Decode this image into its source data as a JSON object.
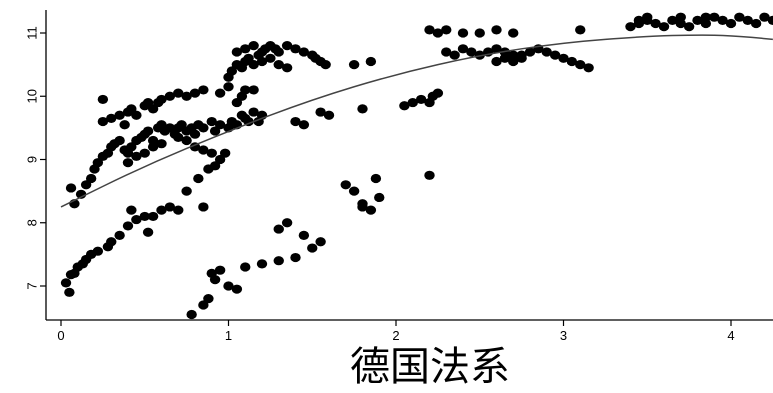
{
  "chart_data": {
    "type": "scatter",
    "xlabel": "德国法系",
    "ylabel": "",
    "title": "",
    "xlim": [
      -0.1,
      4.25
    ],
    "ylim": [
      6.5,
      11.4
    ],
    "xticks": [
      "0",
      "1",
      "2",
      "3",
      "4"
    ],
    "yticks": [
      "7",
      "8",
      "9",
      "10",
      "11"
    ],
    "grid": false,
    "points": [
      [
        0.05,
        6.9
      ],
      [
        0.03,
        7.05
      ],
      [
        0.08,
        7.2
      ],
      [
        0.1,
        7.3
      ],
      [
        0.13,
        7.35
      ],
      [
        0.06,
        7.18
      ],
      [
        0.15,
        7.42
      ],
      [
        0.18,
        7.5
      ],
      [
        0.22,
        7.55
      ],
      [
        0.28,
        7.62
      ],
      [
        0.3,
        7.7
      ],
      [
        0.35,
        7.8
      ],
      [
        0.4,
        7.95
      ],
      [
        0.45,
        8.05
      ],
      [
        0.5,
        8.1
      ],
      [
        0.42,
        8.2
      ],
      [
        0.52,
        7.85
      ],
      [
        0.55,
        8.1
      ],
      [
        0.6,
        8.2
      ],
      [
        0.65,
        8.25
      ],
      [
        0.7,
        8.2
      ],
      [
        0.85,
        8.25
      ],
      [
        0.75,
        8.5
      ],
      [
        0.82,
        8.7
      ],
      [
        0.88,
        8.85
      ],
      [
        0.92,
        8.9
      ],
      [
        0.95,
        9.0
      ],
      [
        0.98,
        9.1
      ],
      [
        0.06,
        8.55
      ],
      [
        0.08,
        8.3
      ],
      [
        0.12,
        8.45
      ],
      [
        0.15,
        8.6
      ],
      [
        0.18,
        8.7
      ],
      [
        0.2,
        8.85
      ],
      [
        0.22,
        8.95
      ],
      [
        0.25,
        9.05
      ],
      [
        0.28,
        9.1
      ],
      [
        0.3,
        9.2
      ],
      [
        0.32,
        9.25
      ],
      [
        0.35,
        9.3
      ],
      [
        0.38,
        9.15
      ],
      [
        0.4,
        9.1
      ],
      [
        0.42,
        9.2
      ],
      [
        0.45,
        9.3
      ],
      [
        0.48,
        9.35
      ],
      [
        0.5,
        9.4
      ],
      [
        0.52,
        9.45
      ],
      [
        0.55,
        9.3
      ],
      [
        0.58,
        9.5
      ],
      [
        0.6,
        9.55
      ],
      [
        0.62,
        9.45
      ],
      [
        0.65,
        9.5
      ],
      [
        0.68,
        9.4
      ],
      [
        0.7,
        9.5
      ],
      [
        0.72,
        9.55
      ],
      [
        0.75,
        9.45
      ],
      [
        0.78,
        9.5
      ],
      [
        0.8,
        9.4
      ],
      [
        0.82,
        9.55
      ],
      [
        0.85,
        9.5
      ],
      [
        0.9,
        9.6
      ],
      [
        0.92,
        9.45
      ],
      [
        0.95,
        9.55
      ],
      [
        0.25,
        9.6
      ],
      [
        0.3,
        9.65
      ],
      [
        0.35,
        9.7
      ],
      [
        0.38,
        9.55
      ],
      [
        0.4,
        9.75
      ],
      [
        0.42,
        9.8
      ],
      [
        0.45,
        9.7
      ],
      [
        0.5,
        9.85
      ],
      [
        0.52,
        9.9
      ],
      [
        0.55,
        9.8
      ],
      [
        0.58,
        9.9
      ],
      [
        0.6,
        9.95
      ],
      [
        0.65,
        10.0
      ],
      [
        0.7,
        10.05
      ],
      [
        0.75,
        10.0
      ],
      [
        0.8,
        10.05
      ],
      [
        0.85,
        10.1
      ],
      [
        0.25,
        9.95
      ],
      [
        0.7,
        9.35
      ],
      [
        0.75,
        9.3
      ],
      [
        0.8,
        9.2
      ],
      [
        0.85,
        9.15
      ],
      [
        0.9,
        9.1
      ],
      [
        0.6,
        9.25
      ],
      [
        0.55,
        9.2
      ],
      [
        0.5,
        9.1
      ],
      [
        0.45,
        9.05
      ],
      [
        0.4,
        8.95
      ],
      [
        1.0,
        9.5
      ],
      [
        1.02,
        9.6
      ],
      [
        1.05,
        9.55
      ],
      [
        1.08,
        9.7
      ],
      [
        1.1,
        9.65
      ],
      [
        1.12,
        9.6
      ],
      [
        1.15,
        9.75
      ],
      [
        1.18,
        9.6
      ],
      [
        1.2,
        9.7
      ],
      [
        1.05,
        9.9
      ],
      [
        1.08,
        10.0
      ],
      [
        1.1,
        10.1
      ],
      [
        1.0,
        10.15
      ],
      [
        0.95,
        10.05
      ],
      [
        1.15,
        10.1
      ],
      [
        1.0,
        10.3
      ],
      [
        1.02,
        10.4
      ],
      [
        1.05,
        10.5
      ],
      [
        1.08,
        10.45
      ],
      [
        1.1,
        10.55
      ],
      [
        1.12,
        10.6
      ],
      [
        1.15,
        10.5
      ],
      [
        1.18,
        10.65
      ],
      [
        1.2,
        10.7
      ],
      [
        1.22,
        10.75
      ],
      [
        1.25,
        10.8
      ],
      [
        1.28,
        10.75
      ],
      [
        1.3,
        10.7
      ],
      [
        1.35,
        10.8
      ],
      [
        1.4,
        10.75
      ],
      [
        1.45,
        10.7
      ],
      [
        1.5,
        10.65
      ],
      [
        1.52,
        10.6
      ],
      [
        1.55,
        10.55
      ],
      [
        1.58,
        10.5
      ],
      [
        1.3,
        10.5
      ],
      [
        1.35,
        10.45
      ],
      [
        1.25,
        10.6
      ],
      [
        1.2,
        10.55
      ],
      [
        1.05,
        10.7
      ],
      [
        1.1,
        10.75
      ],
      [
        1.15,
        10.8
      ],
      [
        1.4,
        9.6
      ],
      [
        1.45,
        9.55
      ],
      [
        1.55,
        9.75
      ],
      [
        1.6,
        9.7
      ],
      [
        1.8,
        9.8
      ],
      [
        1.0,
        7.0
      ],
      [
        1.05,
        6.95
      ],
      [
        0.9,
        7.2
      ],
      [
        0.92,
        7.1
      ],
      [
        0.88,
        6.8
      ],
      [
        0.85,
        6.7
      ],
      [
        0.78,
        6.55
      ],
      [
        0.95,
        7.25
      ],
      [
        1.1,
        7.3
      ],
      [
        1.2,
        7.35
      ],
      [
        1.3,
        7.4
      ],
      [
        1.4,
        7.45
      ],
      [
        1.5,
        7.6
      ],
      [
        1.55,
        7.7
      ],
      [
        1.3,
        7.9
      ],
      [
        1.35,
        8.0
      ],
      [
        1.45,
        7.8
      ],
      [
        1.7,
        8.6
      ],
      [
        1.75,
        8.5
      ],
      [
        1.8,
        8.3
      ],
      [
        1.85,
        8.2
      ],
      [
        1.9,
        8.4
      ],
      [
        1.88,
        8.7
      ],
      [
        1.8,
        8.25
      ],
      [
        1.75,
        10.5
      ],
      [
        1.85,
        10.55
      ],
      [
        2.05,
        9.85
      ],
      [
        2.1,
        9.9
      ],
      [
        2.15,
        9.95
      ],
      [
        2.2,
        9.9
      ],
      [
        2.22,
        10.0
      ],
      [
        2.25,
        10.05
      ],
      [
        2.2,
        8.75
      ],
      [
        2.2,
        11.05
      ],
      [
        2.25,
        11.0
      ],
      [
        2.3,
        11.05
      ],
      [
        2.4,
        11.0
      ],
      [
        2.5,
        11.0
      ],
      [
        2.6,
        11.05
      ],
      [
        2.7,
        11.0
      ],
      [
        2.3,
        10.7
      ],
      [
        2.35,
        10.65
      ],
      [
        2.4,
        10.75
      ],
      [
        2.45,
        10.7
      ],
      [
        2.5,
        10.65
      ],
      [
        2.55,
        10.7
      ],
      [
        2.6,
        10.75
      ],
      [
        2.65,
        10.7
      ],
      [
        2.7,
        10.65
      ],
      [
        2.75,
        10.6
      ],
      [
        2.8,
        10.7
      ],
      [
        2.85,
        10.75
      ],
      [
        2.9,
        10.7
      ],
      [
        2.95,
        10.65
      ],
      [
        2.6,
        10.55
      ],
      [
        2.65,
        10.6
      ],
      [
        2.7,
        10.55
      ],
      [
        2.75,
        10.65
      ],
      [
        3.0,
        10.6
      ],
      [
        3.05,
        10.55
      ],
      [
        3.1,
        10.5
      ],
      [
        3.15,
        10.45
      ],
      [
        3.1,
        11.05
      ],
      [
        3.4,
        11.1
      ],
      [
        3.45,
        11.15
      ],
      [
        3.5,
        11.2
      ],
      [
        3.55,
        11.15
      ],
      [
        3.6,
        11.1
      ],
      [
        3.65,
        11.2
      ],
      [
        3.7,
        11.15
      ],
      [
        3.75,
        11.1
      ],
      [
        3.8,
        11.2
      ],
      [
        3.85,
        11.15
      ],
      [
        3.9,
        11.25
      ],
      [
        3.95,
        11.2
      ],
      [
        4.0,
        11.15
      ],
      [
        4.05,
        11.25
      ],
      [
        4.1,
        11.2
      ],
      [
        4.15,
        11.15
      ],
      [
        4.2,
        11.25
      ],
      [
        3.5,
        11.25
      ],
      [
        3.45,
        11.2
      ],
      [
        3.7,
        11.25
      ],
      [
        3.85,
        11.25
      ],
      [
        4.25,
        11.2
      ]
    ],
    "fit_curve": {
      "type": "quadratic",
      "points": [
        [
          0.0,
          8.25
        ],
        [
          0.5,
          8.9
        ],
        [
          1.0,
          9.45
        ],
        [
          1.5,
          9.95
        ],
        [
          2.0,
          10.35
        ],
        [
          2.5,
          10.65
        ],
        [
          3.0,
          10.85
        ],
        [
          3.5,
          10.95
        ],
        [
          3.8,
          10.97
        ],
        [
          4.0,
          10.96
        ],
        [
          4.25,
          10.9
        ]
      ]
    }
  }
}
